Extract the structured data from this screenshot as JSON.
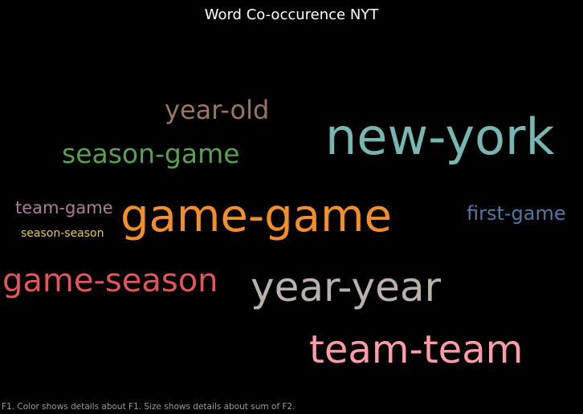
{
  "chart_data": {
    "type": "word-cloud",
    "title": "Word Co-occurence NYT",
    "words": [
      {
        "text": "new-york",
        "color": "#76b7b2"
      },
      {
        "text": "game-game",
        "color": "#f28e2b"
      },
      {
        "text": "year-year",
        "color": "#bab0ac"
      },
      {
        "text": "team-team",
        "color": "#ff9da7"
      },
      {
        "text": "game-season",
        "color": "#e15759"
      },
      {
        "text": "season-game",
        "color": "#59a14f"
      },
      {
        "text": "year-old",
        "color": "#9c755f"
      },
      {
        "text": "first-game",
        "color": "#4e79a7"
      },
      {
        "text": "team-game",
        "color": "#b07aa1"
      },
      {
        "text": "season-season",
        "color": "#edc948"
      }
    ]
  },
  "footer": "F1.  Color shows details about F1.  Size shows details about sum of F2."
}
